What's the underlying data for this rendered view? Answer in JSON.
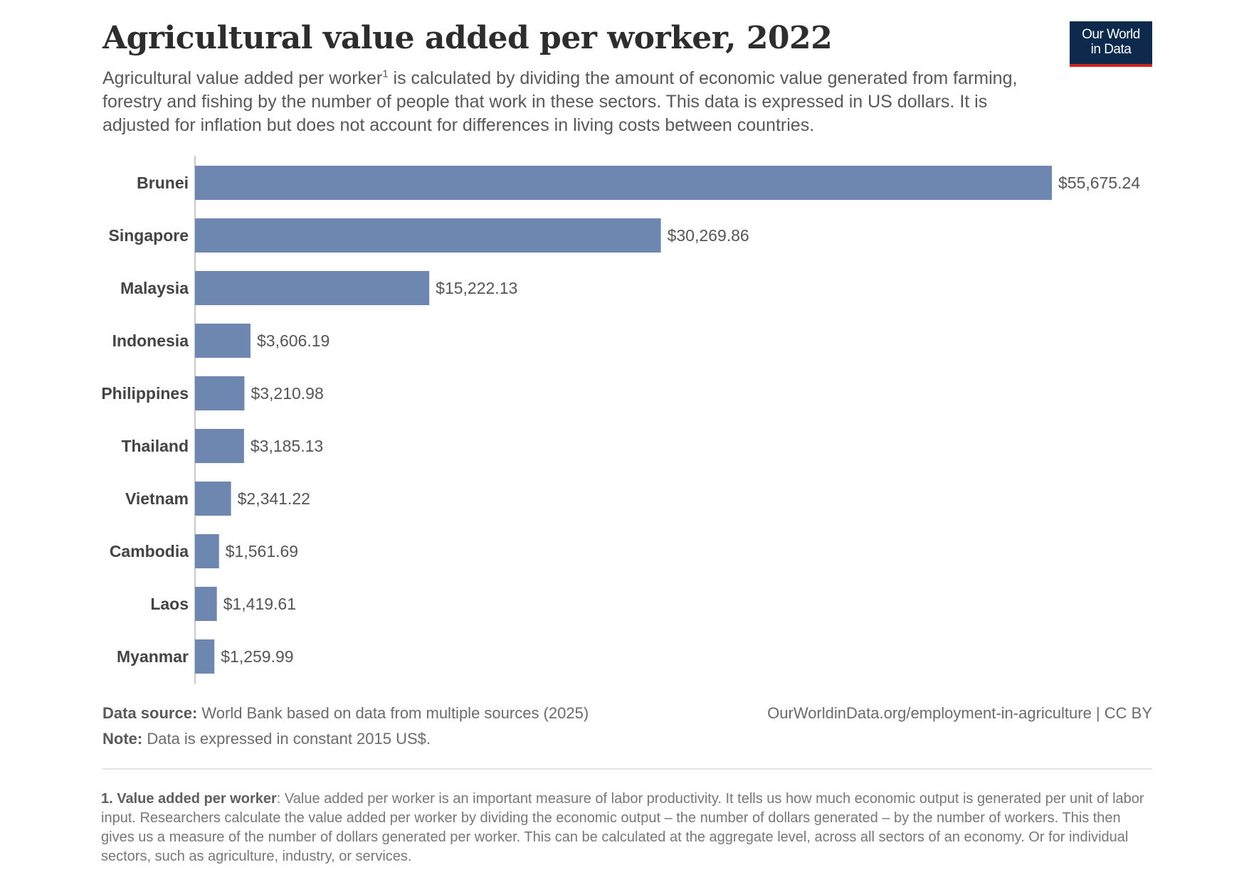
{
  "header": {
    "title": "Agricultural value added per worker, 2022",
    "subtitle_part1": "Agricultural value added per worker",
    "subtitle_sup": "1",
    "subtitle_part2": " is calculated by dividing the amount of economic value generated from farming, forestry and fishing by the number of people that work in these sectors. This data is expressed in US dollars. It is adjusted for inflation but does not account for differences in living costs between countries."
  },
  "logo": {
    "line1": "Our World",
    "line2": "in Data"
  },
  "chart_data": {
    "type": "bar",
    "orientation": "horizontal",
    "categories": [
      "Brunei",
      "Singapore",
      "Malaysia",
      "Indonesia",
      "Philippines",
      "Thailand",
      "Vietnam",
      "Cambodia",
      "Laos",
      "Myanmar"
    ],
    "values": [
      55675.24,
      30269.86,
      15222.13,
      3606.19,
      3210.98,
      3185.13,
      2341.22,
      1561.69,
      1419.61,
      1259.99
    ],
    "value_labels": [
      "$55,675.24",
      "$30,269.86",
      "$15,222.13",
      "$3,606.19",
      "$3,210.98",
      "$3,185.13",
      "$2,341.22",
      "$1,561.69",
      "$1,419.61",
      "$1,259.99"
    ],
    "bar_color": "#6d87b1",
    "grid": false,
    "legend": "none"
  },
  "footer": {
    "source_label": "Data source:",
    "source_text": " World Bank based on data from multiple sources (2025)",
    "note_label": "Note:",
    "note_text": " Data is expressed in constant 2015 US$.",
    "url": "OurWorldinData.org/employment-in-agriculture | CC BY"
  },
  "footnote": {
    "label": "1. Value added per worker",
    "text": ": Value added per worker is an important measure of labor productivity. It tells us how much economic output is generated per unit of labor input. Researchers calculate the value added per worker by dividing the economic output – the number of dollars generated – by the number of workers. This then gives us a measure of the number of dollars generated per worker. This can be calculated at the aggregate level, across all sectors of an economy. Or for individual sectors, such as agriculture, industry, or services."
  }
}
